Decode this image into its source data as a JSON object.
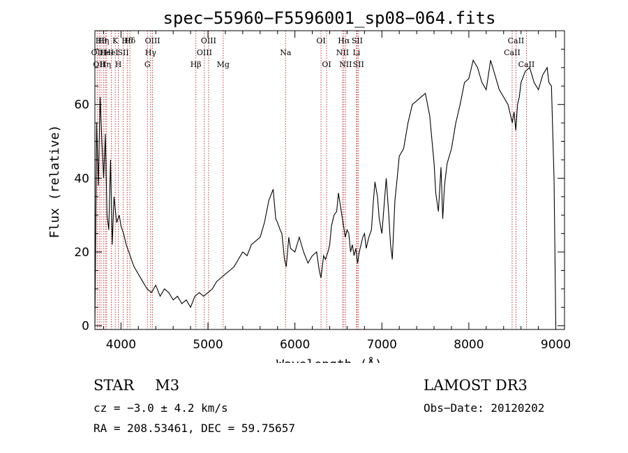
{
  "chart_data": {
    "type": "line",
    "title": "spec−55960−F5596001_sp08−064.fits",
    "xlabel": "Wavelength (Å)",
    "ylabel": "Flux (relative)",
    "xlim": [
      3700,
      9100
    ],
    "ylim": [
      -1,
      80
    ],
    "xticks": [
      4000,
      5000,
      6000,
      7000,
      8000,
      9000
    ],
    "yticks": [
      0,
      20,
      40,
      60
    ],
    "series": [
      {
        "name": "flux",
        "x": [
          3700,
          3720,
          3740,
          3760,
          3780,
          3800,
          3820,
          3840,
          3860,
          3880,
          3900,
          3920,
          3950,
          3980,
          4000,
          4030,
          4060,
          4090,
          4120,
          4150,
          4200,
          4250,
          4300,
          4350,
          4400,
          4450,
          4500,
          4550,
          4600,
          4650,
          4700,
          4750,
          4800,
          4850,
          4900,
          4950,
          5000,
          5050,
          5100,
          5150,
          5200,
          5250,
          5300,
          5350,
          5400,
          5450,
          5500,
          5550,
          5600,
          5650,
          5700,
          5750,
          5780,
          5800,
          5830,
          5850,
          5880,
          5900,
          5930,
          5950,
          6000,
          6050,
          6100,
          6150,
          6200,
          6250,
          6280,
          6300,
          6330,
          6350,
          6380,
          6400,
          6420,
          6450,
          6480,
          6500,
          6520,
          6540,
          6560,
          6580,
          6600,
          6620,
          6640,
          6660,
          6680,
          6700,
          6720,
          6740,
          6760,
          6780,
          6800,
          6820,
          6850,
          6880,
          6900,
          6920,
          6950,
          6970,
          7000,
          7050,
          7080,
          7100,
          7120,
          7150,
          7180,
          7200,
          7250,
          7300,
          7350,
          7400,
          7450,
          7500,
          7550,
          7600,
          7620,
          7650,
          7680,
          7700,
          7720,
          7750,
          7800,
          7850,
          7900,
          7950,
          8000,
          8050,
          8100,
          8150,
          8200,
          8250,
          8300,
          8350,
          8400,
          8450,
          8500,
          8520,
          8540,
          8560,
          8580,
          8600,
          8650,
          8700,
          8750,
          8800,
          8850,
          8900,
          8920,
          8950,
          8980,
          9000
        ],
        "values": [
          0,
          55,
          38,
          62,
          50,
          40,
          52,
          30,
          26,
          45,
          22,
          35,
          28,
          30,
          27,
          25,
          22,
          20,
          18,
          16,
          14,
          12,
          10,
          9,
          11,
          8,
          10,
          9,
          7,
          8,
          6,
          7,
          5,
          8,
          9,
          8,
          9,
          10,
          12,
          13,
          14,
          15,
          16,
          18,
          20,
          19,
          22,
          23,
          24,
          28,
          34,
          37,
          29,
          28,
          26,
          25,
          18,
          16,
          24,
          21,
          20,
          24,
          20,
          17,
          19,
          20,
          15,
          13,
          19,
          18,
          20,
          22,
          27,
          30,
          31,
          36,
          33,
          30,
          27,
          24,
          26,
          25,
          20,
          22,
          19,
          21,
          17,
          20,
          22,
          24,
          25,
          21,
          24,
          26,
          33,
          39,
          35,
          29,
          25,
          40,
          30,
          22,
          18,
          34,
          41,
          46,
          48,
          55,
          60,
          61,
          62,
          63,
          57,
          44,
          36,
          31,
          43,
          29,
          38,
          44,
          48,
          55,
          60,
          66,
          67,
          72,
          70,
          66,
          64,
          72,
          68,
          64,
          62,
          60,
          55,
          58,
          53,
          60,
          62,
          66,
          69,
          70,
          66,
          64,
          68,
          70,
          66,
          65,
          40,
          0
        ]
      }
    ],
    "line_markers": [
      {
        "wavelength": 3727,
        "row": 1,
        "label": "OII"
      },
      {
        "wavelength": 3750,
        "row": 2,
        "label": "OII"
      },
      {
        "wavelength": 3771,
        "row": 0,
        "label": "Hθ"
      },
      {
        "wavelength": 3798,
        "row": 0,
        "label": "Hη"
      },
      {
        "wavelength": 3820,
        "row": 2,
        "label": "Hη"
      },
      {
        "wavelength": 3835,
        "row": 1,
        "label": "HeI"
      },
      {
        "wavelength": 3889,
        "row": 1,
        "label": "HeI"
      },
      {
        "wavelength": 3934,
        "row": 0,
        "label": "K"
      },
      {
        "wavelength": 3969,
        "row": 2,
        "label": "H"
      },
      {
        "wavelength": 4026,
        "row": 1,
        "label": "SII"
      },
      {
        "wavelength": 4072,
        "row": 0,
        "label": "Hδ"
      },
      {
        "wavelength": 4102,
        "row": 0,
        "label": "Hδ"
      },
      {
        "wavelength": 4304,
        "row": 2,
        "label": "G"
      },
      {
        "wavelength": 4341,
        "row": 1,
        "label": "Hγ"
      },
      {
        "wavelength": 4363,
        "row": 0,
        "label": "OIII"
      },
      {
        "wavelength": 4861,
        "row": 2,
        "label": "Hβ"
      },
      {
        "wavelength": 4959,
        "row": 1,
        "label": "OIII"
      },
      {
        "wavelength": 5007,
        "row": 0,
        "label": "OIII"
      },
      {
        "wavelength": 5175,
        "row": 2,
        "label": "Mg"
      },
      {
        "wavelength": 5893,
        "row": 1,
        "label": "Na"
      },
      {
        "wavelength": 6300,
        "row": 0,
        "label": "OI"
      },
      {
        "wavelength": 6364,
        "row": 2,
        "label": "OI"
      },
      {
        "wavelength": 6548,
        "row": 1,
        "label": "NII"
      },
      {
        "wavelength": 6563,
        "row": 0,
        "label": "Hα"
      },
      {
        "wavelength": 6583,
        "row": 2,
        "label": "NII"
      },
      {
        "wavelength": 6708,
        "row": 1,
        "label": "Li"
      },
      {
        "wavelength": 6716,
        "row": 0,
        "label": "SII"
      },
      {
        "wavelength": 6731,
        "row": 2,
        "label": "SII"
      },
      {
        "wavelength": 8498,
        "row": 1,
        "label": "CaII"
      },
      {
        "wavelength": 8542,
        "row": 0,
        "label": "CaII"
      },
      {
        "wavelength": 8662,
        "row": 2,
        "label": "CaII"
      }
    ]
  },
  "info": {
    "object_class": "STAR",
    "subclass": "M3",
    "survey": "LAMOST DR3",
    "redshift": "cz = −3.0 ± 4.2 km/s",
    "obs_date": "Obs−Date: 20120202",
    "coords": "RA = 208.53461, DEC =  59.75657"
  },
  "colors": {
    "spectrum": "#000000",
    "marker_line": "#b22222",
    "axes": "#000000"
  }
}
